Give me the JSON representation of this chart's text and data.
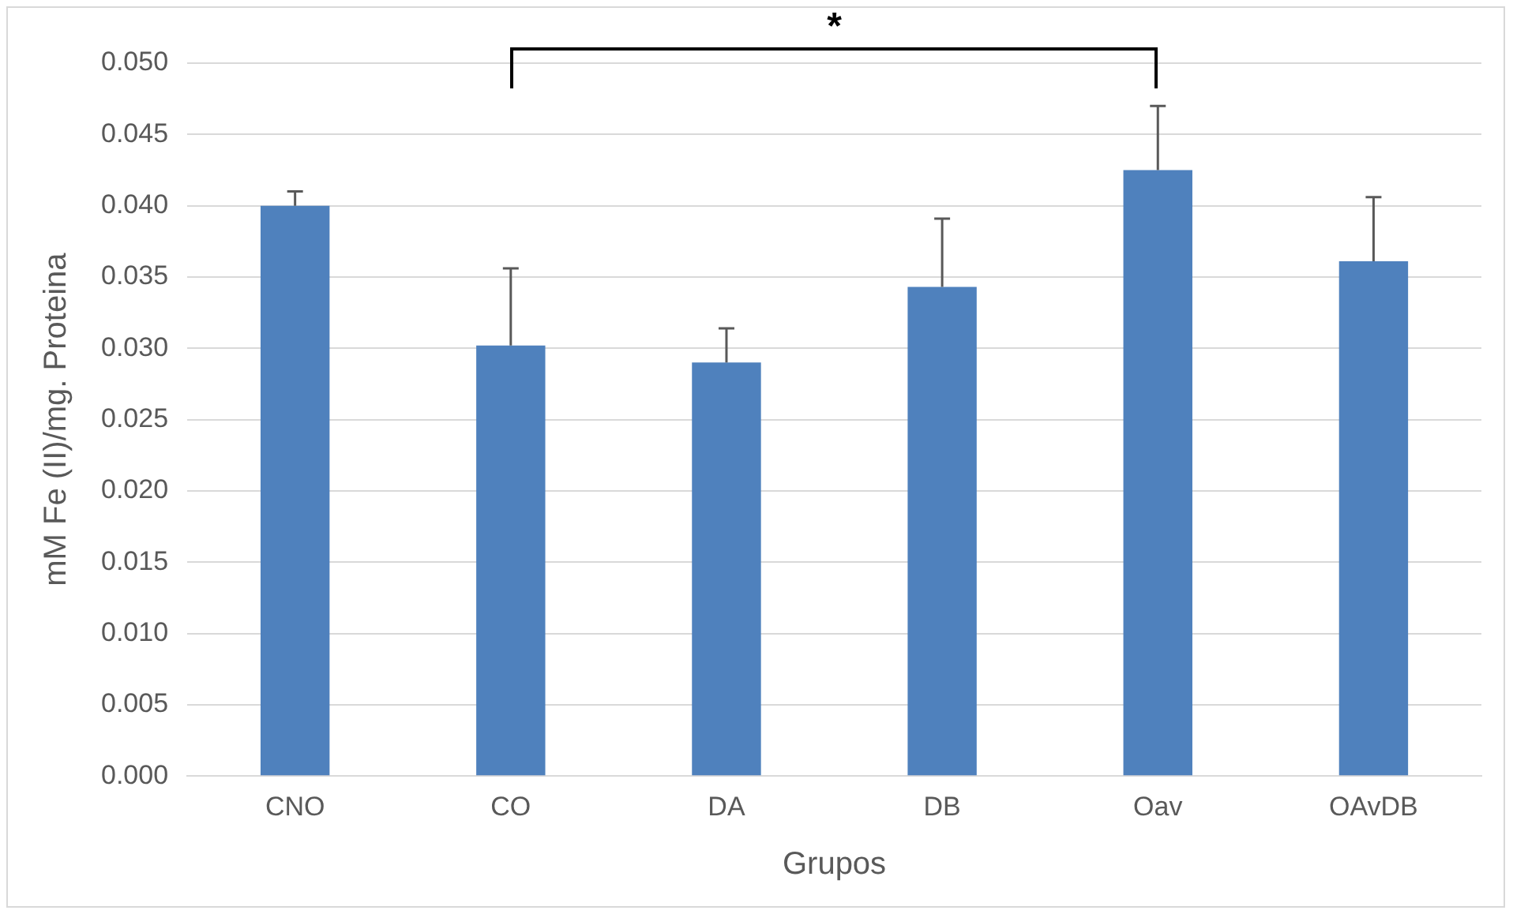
{
  "chart_data": {
    "type": "bar",
    "xlabel": "Grupos",
    "ylabel": "mM Fe (II)/mg. Proteina",
    "categories": [
      "CNO",
      "CO",
      "DA",
      "DB",
      "Oav",
      "OAvDB"
    ],
    "values": [
      0.04,
      0.0302,
      0.029,
      0.0343,
      0.0425,
      0.0361
    ],
    "errors": [
      [
        0.04,
        0.041
      ],
      [
        0.0302,
        0.0356
      ],
      [
        0.029,
        0.0314
      ],
      [
        0.0343,
        0.0391
      ],
      [
        0.0425,
        0.047
      ],
      [
        0.0361,
        0.0406
      ]
    ],
    "color": "#4f81bd",
    "ylim": [
      0,
      0.05
    ],
    "yticks": [
      {
        "value": 0,
        "label": "0.000"
      },
      {
        "value": 0.005,
        "label": "0.005"
      },
      {
        "value": 0.01,
        "label": "0.010"
      },
      {
        "value": 0.015,
        "label": "0.015"
      },
      {
        "value": 0.02,
        "label": "0.020"
      },
      {
        "value": 0.025,
        "label": "0.025"
      },
      {
        "value": 0.03,
        "label": "0.030"
      },
      {
        "value": 0.035,
        "label": "0.035"
      },
      {
        "value": 0.04,
        "label": "0.040"
      },
      {
        "value": 0.045,
        "label": "0.045"
      },
      {
        "value": 0.05,
        "label": "0.050"
      }
    ],
    "grid": "y",
    "legend": false,
    "annotations": [
      "*"
    ]
  }
}
